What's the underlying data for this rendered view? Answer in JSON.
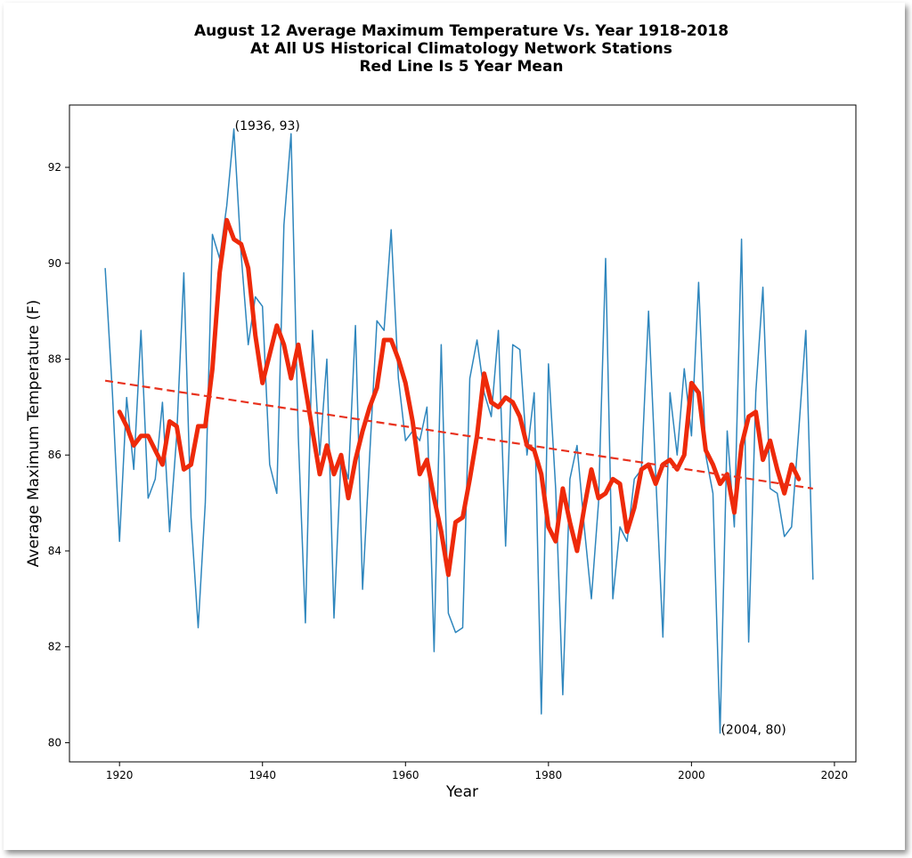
{
  "chart_data": {
    "type": "line",
    "title_lines": [
      "August 12 Average Maximum Temperature Vs. Year 1918-2018",
      "At All US Historical Climatology Network Stations",
      "Red Line Is 5 Year Mean"
    ],
    "xlabel": "Year",
    "ylabel": "Average Maximum Temperature (F)",
    "xlim": [
      1913,
      2023
    ],
    "ylim": [
      79.6,
      93.3
    ],
    "xticks": [
      1920,
      1940,
      1960,
      1980,
      2000,
      2020
    ],
    "yticks": [
      80,
      82,
      84,
      86,
      88,
      90,
      92
    ],
    "grid": false,
    "colors": {
      "raw": "#2e86bd",
      "mean": "#ee2a0a",
      "trend": "#e8321e"
    },
    "series": [
      {
        "style": "thin-line",
        "x": [
          1918,
          1919,
          1920,
          1921,
          1922,
          1923,
          1924,
          1925,
          1926,
          1927,
          1928,
          1929,
          1930,
          1931,
          1932,
          1933,
          1934,
          1935,
          1936,
          1937,
          1938,
          1939,
          1940,
          1941,
          1942,
          1943,
          1944,
          1945,
          1946,
          1947,
          1948,
          1949,
          1950,
          1951,
          1952,
          1953,
          1954,
          1955,
          1956,
          1957,
          1958,
          1959,
          1960,
          1961,
          1962,
          1963,
          1964,
          1965,
          1966,
          1967,
          1968,
          1969,
          1970,
          1971,
          1972,
          1973,
          1974,
          1975,
          1976,
          1977,
          1978,
          1979,
          1980,
          1981,
          1982,
          1983,
          1984,
          1985,
          1986,
          1987,
          1988,
          1989,
          1990,
          1991,
          1992,
          1993,
          1994,
          1995,
          1996,
          1997,
          1998,
          1999,
          2000,
          2001,
          2002,
          2003,
          2004,
          2005,
          2006,
          2007,
          2008,
          2009,
          2010,
          2011,
          2012,
          2013,
          2014,
          2015,
          2016,
          2017
        ],
        "values": [
          89.9,
          87.3,
          84.2,
          87.2,
          85.7,
          88.6,
          85.1,
          85.5,
          87.1,
          84.4,
          86.4,
          89.8,
          84.7,
          82.4,
          85.0,
          90.6,
          90.1,
          91.2,
          92.8,
          90.2,
          88.3,
          89.3,
          89.1,
          85.8,
          85.2,
          90.8,
          92.7,
          86.4,
          82.5,
          88.6,
          86.0,
          88.0,
          82.6,
          86.0,
          85.5,
          88.7,
          83.2,
          86.0,
          88.8,
          88.6,
          90.7,
          87.6,
          86.3,
          86.5,
          86.3,
          87.0,
          81.9,
          88.3,
          82.7,
          82.3,
          82.4,
          87.6,
          88.4,
          87.3,
          86.8,
          88.6,
          84.1,
          88.3,
          88.2,
          86.0,
          87.3,
          80.6,
          87.9,
          85.3,
          81.0,
          85.5,
          86.2,
          84.5,
          83.0,
          85.0,
          90.1,
          83.0,
          84.5,
          84.2,
          85.5,
          85.7,
          89.0,
          85.6,
          82.2,
          87.3,
          86.0,
          87.8,
          86.4,
          89.6,
          86.0,
          85.2,
          80.2,
          86.5,
          84.5,
          90.5,
          82.1,
          87.3,
          89.5,
          85.3,
          85.2,
          84.3,
          84.5,
          86.5,
          88.6,
          83.4
        ]
      },
      {
        "style": "thick-line",
        "x": [
          1920,
          1921,
          1922,
          1923,
          1924,
          1925,
          1926,
          1927,
          1928,
          1929,
          1930,
          1931,
          1932,
          1933,
          1934,
          1935,
          1936,
          1937,
          1938,
          1939,
          1940,
          1941,
          1942,
          1943,
          1944,
          1945,
          1946,
          1947,
          1948,
          1949,
          1950,
          1951,
          1952,
          1953,
          1954,
          1955,
          1956,
          1957,
          1958,
          1959,
          1960,
          1961,
          1962,
          1963,
          1964,
          1965,
          1966,
          1967,
          1968,
          1969,
          1970,
          1971,
          1972,
          1973,
          1974,
          1975,
          1976,
          1977,
          1978,
          1979,
          1980,
          1981,
          1982,
          1983,
          1984,
          1985,
          1986,
          1987,
          1988,
          1989,
          1990,
          1991,
          1992,
          1993,
          1994,
          1995,
          1996,
          1997,
          1998,
          1999,
          2000,
          2001,
          2002,
          2003,
          2004,
          2005,
          2006,
          2007,
          2008,
          2009,
          2010,
          2011,
          2012,
          2013,
          2014,
          2015
        ],
        "values": [
          86.9,
          86.6,
          86.2,
          86.4,
          86.4,
          86.1,
          85.8,
          86.7,
          86.6,
          85.7,
          85.8,
          86.6,
          86.6,
          87.8,
          89.8,
          90.9,
          90.5,
          90.4,
          89.9,
          88.5,
          87.5,
          88.1,
          88.7,
          88.3,
          87.6,
          88.3,
          87.4,
          86.5,
          85.6,
          86.2,
          85.6,
          86.0,
          85.1,
          85.9,
          86.5,
          87.0,
          87.4,
          88.4,
          88.4,
          88.0,
          87.5,
          86.7,
          85.6,
          85.9,
          85.1,
          84.4,
          83.5,
          84.6,
          84.7,
          85.5,
          86.4,
          87.7,
          87.1,
          87.0,
          87.2,
          87.1,
          86.8,
          86.2,
          86.1,
          85.6,
          84.5,
          84.2,
          85.3,
          84.6,
          84.0,
          84.9,
          85.7,
          85.1,
          85.2,
          85.5,
          85.4,
          84.4,
          84.9,
          85.7,
          85.8,
          85.4,
          85.8,
          85.9,
          85.7,
          86.0,
          87.5,
          87.3,
          86.1,
          85.8,
          85.4,
          85.6,
          84.8,
          86.2,
          86.8,
          86.9,
          85.9,
          86.3,
          85.7,
          85.2,
          85.8,
          85.5
        ]
      },
      {
        "style": "dashed-trend",
        "x": [
          1918,
          2017
        ],
        "values": [
          87.55,
          85.3
        ]
      }
    ],
    "annotations": [
      {
        "text": "(1936, 93)",
        "x": 1936,
        "y": 92.8
      },
      {
        "text": "(2004, 80)",
        "x": 2004,
        "y": 80.2
      }
    ]
  }
}
